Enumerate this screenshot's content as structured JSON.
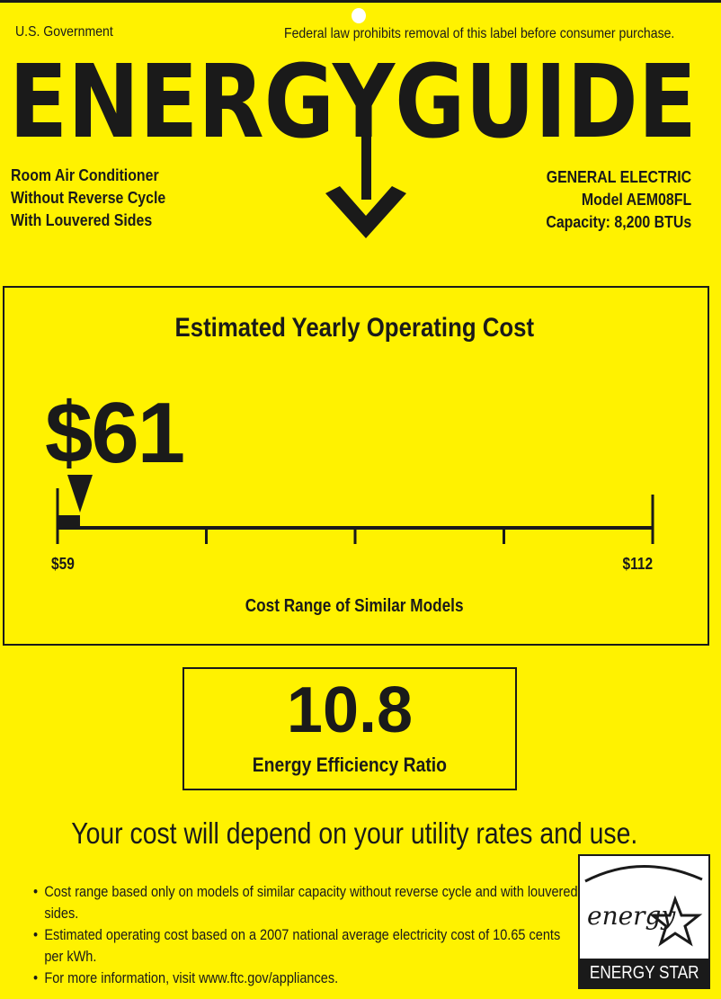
{
  "header": {
    "left": "U.S. Government",
    "right": "Federal law prohibits removal of this label before consumer purchase.",
    "title": "ENERGYGUIDE"
  },
  "product": {
    "lines": [
      "Room Air Conditioner",
      "Without Reverse Cycle",
      "With Louvered Sides"
    ]
  },
  "manufacturer": {
    "brand": "GENERAL ELECTRIC",
    "model": "Model AEM08FL",
    "capacity": "Capacity: 8,200 BTUs"
  },
  "cost": {
    "heading": "Estimated Yearly Operating Cost",
    "value": "$61",
    "value_number": 61,
    "range_min_label": "$59",
    "range_max_label": "$112",
    "range_min": 59,
    "range_max": 112,
    "range_caption": "Cost Range of Similar Models"
  },
  "efficiency": {
    "value": "10.8",
    "label": "Energy Efficiency Ratio"
  },
  "notice": "Your cost will depend on your utility rates and use.",
  "footnotes": [
    "Cost range based only on models of similar capacity without reverse cycle and with louvered sides.",
    "Estimated operating cost based on a 2007 national average electricity cost of 10.65 cents per kWh.",
    "For more information, visit www.ftc.gov/appliances."
  ],
  "energy_star": {
    "script": "energy",
    "label": "ENERGY STAR"
  },
  "colors": {
    "background": "#fff200",
    "ink": "#1a1a1a"
  }
}
